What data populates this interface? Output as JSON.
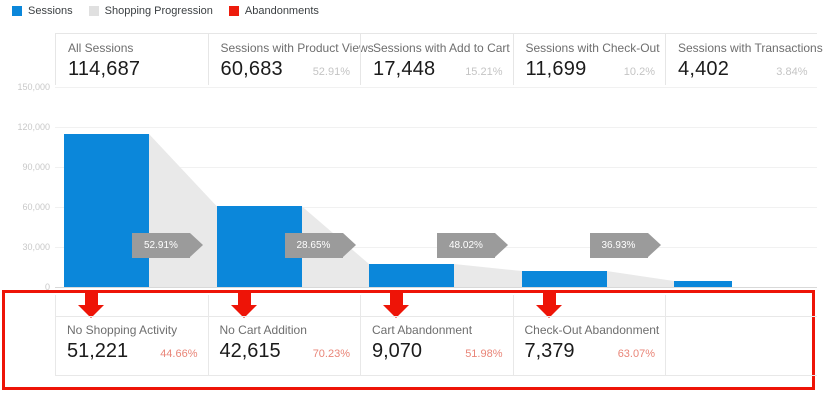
{
  "legend": {
    "items": [
      {
        "label": "Sessions",
        "color": "#0b87da"
      },
      {
        "label": "Shopping Progression",
        "color": "#e0e0e0"
      },
      {
        "label": "Abandonments",
        "color": "#ed1c0c"
      }
    ]
  },
  "colors": {
    "sessions_blue": "#0b87da",
    "progression_gray": "#e9e9e9",
    "chevron_gray": "#9b9b9b",
    "abandonment_red": "#ee1407",
    "abandon_pct_red": "#e98578"
  },
  "chart_data": {
    "type": "bar",
    "ylabel": "",
    "xlabel": "",
    "ylim": [
      0,
      150000
    ],
    "grid": true,
    "legend_position": "top-left",
    "y_axis": {
      "ticks": [
        "0",
        "30,000",
        "60,000",
        "90,000",
        "120,000",
        "150,000"
      ]
    },
    "steps": [
      {
        "label": "All Sessions",
        "value": 114687,
        "display": "114,687",
        "pct": ""
      },
      {
        "label": "Sessions with Product Views",
        "value": 60683,
        "display": "60,683",
        "pct": "52.91%"
      },
      {
        "label": "Sessions with Add to Cart",
        "value": 17448,
        "display": "17,448",
        "pct": "15.21%"
      },
      {
        "label": "Sessions with Check-Out",
        "value": 11699,
        "display": "11,699",
        "pct": "10.2%"
      },
      {
        "label": "Sessions with Transactions",
        "value": 4402,
        "display": "4,402",
        "pct": "3.84%"
      }
    ],
    "progression": [
      {
        "pct": "52.91%"
      },
      {
        "pct": "28.65%"
      },
      {
        "pct": "48.02%"
      },
      {
        "pct": "36.93%"
      }
    ],
    "abandonments": [
      {
        "label": "No Shopping Activity",
        "value": 51221,
        "display": "51,221",
        "pct": "44.66%"
      },
      {
        "label": "No Cart Addition",
        "value": 42615,
        "display": "42,615",
        "pct": "70.23%"
      },
      {
        "label": "Cart Abandonment",
        "value": 9070,
        "display": "9,070",
        "pct": "51.98%"
      },
      {
        "label": "Check-Out Abandonment",
        "value": 7379,
        "display": "7,379",
        "pct": "63.07%"
      }
    ]
  }
}
